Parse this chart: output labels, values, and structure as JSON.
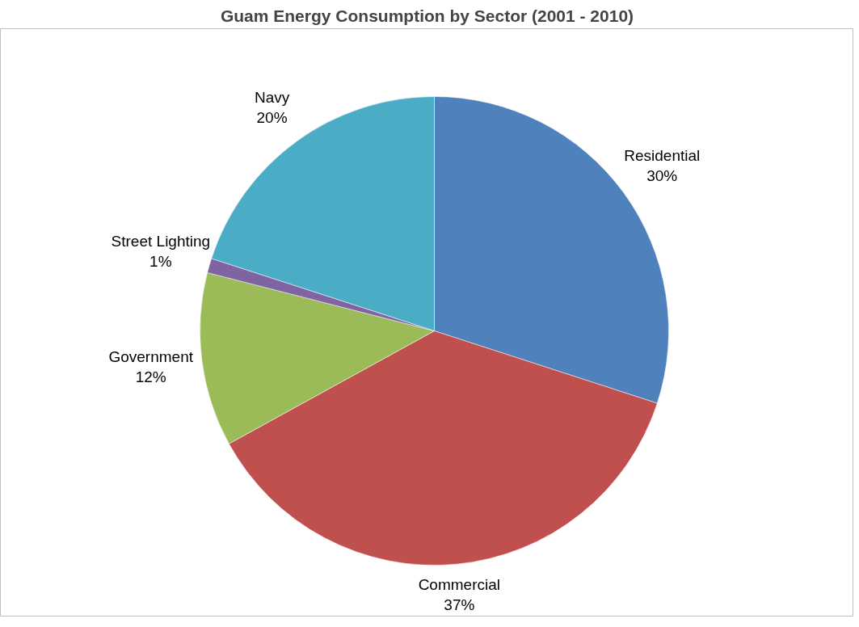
{
  "chart_data": {
    "type": "pie",
    "title": "Guam Energy Consumption by Sector (2001 - 2010)",
    "categories": [
      "Residential",
      "Commercial",
      "Government",
      "Street Lighting",
      "Navy"
    ],
    "values": [
      30,
      37,
      12,
      1,
      20
    ],
    "colors": [
      "#4f81bd",
      "#c0504d",
      "#9bbb59",
      "#8064a2",
      "#4bacc6"
    ],
    "value_labels": [
      "30%",
      "37%",
      "12%",
      "1%",
      "20%"
    ]
  }
}
